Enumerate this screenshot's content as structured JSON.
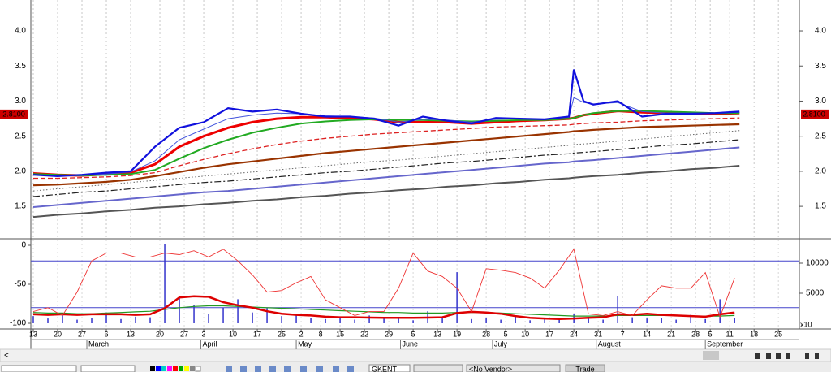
{
  "chart_data": [
    {
      "type": "line",
      "x": [
        0,
        5,
        10,
        15,
        20,
        25,
        30,
        35,
        40,
        45,
        50,
        55,
        60,
        65,
        70,
        75,
        80,
        85,
        90,
        95,
        100,
        105,
        110,
        111,
        113,
        115,
        120,
        125,
        130,
        135,
        140,
        145
      ],
      "xlim": [
        -0.5,
        157.3
      ],
      "xticks": [
        {
          "value": 0,
          "label": "13"
        },
        {
          "value": 5,
          "label": "20"
        },
        {
          "value": 10,
          "label": "27"
        },
        {
          "value": 15,
          "label": "6"
        },
        {
          "value": 20,
          "label": "13"
        },
        {
          "value": 26,
          "label": "20"
        },
        {
          "value": 31,
          "label": "27"
        },
        {
          "value": 35,
          "label": "3"
        },
        {
          "value": 41,
          "label": "10"
        },
        {
          "value": 46,
          "label": "17"
        },
        {
          "value": 51,
          "label": "25"
        },
        {
          "value": 55,
          "label": "2"
        },
        {
          "value": 59,
          "label": "8"
        },
        {
          "value": 63,
          "label": "15"
        },
        {
          "value": 68,
          "label": "22"
        },
        {
          "value": 73,
          "label": "29"
        },
        {
          "value": 78,
          "label": "5"
        },
        {
          "value": 83,
          "label": "13"
        },
        {
          "value": 87,
          "label": "19"
        },
        {
          "value": 93,
          "label": "28"
        },
        {
          "value": 97,
          "label": "5"
        },
        {
          "value": 101,
          "label": "10"
        },
        {
          "value": 106,
          "label": "17"
        },
        {
          "value": 111,
          "label": "24"
        },
        {
          "value": 116,
          "label": "31"
        },
        {
          "value": 121,
          "label": "7"
        },
        {
          "value": 126,
          "label": "14"
        },
        {
          "value": 131,
          "label": "21"
        },
        {
          "value": 136,
          "label": "28"
        },
        {
          "value": 139,
          "label": "5"
        },
        {
          "value": 143,
          "label": "11"
        },
        {
          "value": 148,
          "label": "18"
        },
        {
          "value": 153,
          "label": "25"
        }
      ],
      "month_labels": [
        {
          "value": 11,
          "label": "March"
        },
        {
          "value": 34.4,
          "label": "April"
        },
        {
          "value": 54,
          "label": "May"
        },
        {
          "value": 75.4,
          "label": "June"
        },
        {
          "value": 94.3,
          "label": "July"
        },
        {
          "value": 115.6,
          "label": "August"
        },
        {
          "value": 138,
          "label": "September"
        }
      ],
      "ylim": [
        1.05,
        4.44
      ],
      "yticks": [
        1.5,
        {
          "value": 2,
          "label": "2.0"
        },
        2.5,
        {
          "value": 3,
          "label": "3.0"
        },
        3.5,
        {
          "value": 4,
          "label": "4.0"
        }
      ],
      "grid": true,
      "last_price": {
        "value": 2.81,
        "label": "2.8100"
      },
      "series": [
        {
          "color": "#555555",
          "width": 2,
          "style": "solid",
          "values": [
            1.35,
            1.38,
            1.4,
            1.43,
            1.45,
            1.48,
            1.5,
            1.53,
            1.55,
            1.58,
            1.6,
            1.63,
            1.65,
            1.68,
            1.7,
            1.73,
            1.75,
            1.78,
            1.8,
            1.83,
            1.85,
            1.88,
            1.9,
            1.91,
            1.92,
            1.93,
            1.95,
            1.98,
            2.0,
            2.03,
            2.05,
            2.08
          ]
        },
        {
          "color": "#6666cc",
          "width": 2,
          "style": "solid",
          "values": [
            1.49,
            1.52,
            1.55,
            1.58,
            1.61,
            1.64,
            1.67,
            1.7,
            1.72,
            1.75,
            1.78,
            1.81,
            1.84,
            1.87,
            1.9,
            1.93,
            1.96,
            1.99,
            2.02,
            2.05,
            2.08,
            2.11,
            2.13,
            2.14,
            2.15,
            2.16,
            2.19,
            2.22,
            2.25,
            2.28,
            2.31,
            2.34
          ]
        },
        {
          "color": "#222222",
          "width": 1.2,
          "style": "dashdot",
          "values": [
            1.64,
            1.67,
            1.7,
            1.72,
            1.75,
            1.78,
            1.81,
            1.84,
            1.86,
            1.89,
            1.92,
            1.95,
            1.98,
            2.0,
            2.03,
            2.06,
            2.09,
            2.12,
            2.14,
            2.17,
            2.2,
            2.23,
            2.25,
            2.26,
            2.27,
            2.28,
            2.31,
            2.34,
            2.37,
            2.39,
            2.42,
            2.45
          ]
        },
        {
          "color": "#666666",
          "width": 1,
          "style": "dotted",
          "values": [
            1.72,
            1.75,
            1.78,
            1.81,
            1.84,
            1.87,
            1.9,
            1.93,
            1.96,
            1.99,
            2.02,
            2.05,
            2.08,
            2.11,
            2.14,
            2.16,
            2.19,
            2.22,
            2.25,
            2.28,
            2.31,
            2.34,
            2.37,
            2.38,
            2.39,
            2.4,
            2.43,
            2.46,
            2.49,
            2.52,
            2.55,
            2.58
          ]
        },
        {
          "color": "#993300",
          "width": 2.2,
          "style": "solid",
          "values": [
            1.8,
            1.81,
            1.83,
            1.85,
            1.88,
            1.93,
            1.99,
            2.05,
            2.1,
            2.14,
            2.18,
            2.22,
            2.26,
            2.29,
            2.32,
            2.35,
            2.38,
            2.41,
            2.44,
            2.47,
            2.5,
            2.53,
            2.56,
            2.57,
            2.58,
            2.59,
            2.61,
            2.63,
            2.64,
            2.65,
            2.66,
            2.67
          ]
        },
        {
          "color": "#dd2222",
          "width": 1.3,
          "style": "dashed",
          "values": [
            1.9,
            1.9,
            1.91,
            1.92,
            1.94,
            1.98,
            2.08,
            2.17,
            2.25,
            2.32,
            2.38,
            2.43,
            2.47,
            2.5,
            2.53,
            2.55,
            2.57,
            2.59,
            2.61,
            2.63,
            2.64,
            2.65,
            2.66,
            2.67,
            2.68,
            2.69,
            2.7,
            2.72,
            2.73,
            2.74,
            2.75,
            2.76
          ]
        },
        {
          "color": "#ee0000",
          "width": 3,
          "style": "solid",
          "values": [
            1.97,
            1.95,
            1.94,
            1.96,
            1.98,
            2.1,
            2.35,
            2.5,
            2.62,
            2.7,
            2.75,
            2.77,
            2.77,
            2.76,
            2.74,
            2.7,
            2.7,
            2.7,
            2.68,
            2.7,
            2.72,
            2.73,
            2.75,
            2.76,
            2.8,
            2.82,
            2.86,
            2.84,
            2.83,
            2.82,
            2.82,
            2.83
          ]
        },
        {
          "color": "#22aa22",
          "width": 2,
          "style": "solid",
          "values": [
            1.96,
            1.95,
            1.94,
            1.95,
            1.96,
            2.02,
            2.18,
            2.33,
            2.45,
            2.55,
            2.62,
            2.68,
            2.71,
            2.73,
            2.74,
            2.73,
            2.73,
            2.72,
            2.71,
            2.72,
            2.73,
            2.73,
            2.75,
            2.76,
            2.8,
            2.83,
            2.86,
            2.86,
            2.85,
            2.84,
            2.83,
            2.83
          ]
        },
        {
          "color": "#4455dd",
          "width": 1,
          "style": "solid",
          "values": [
            1.95,
            1.94,
            1.94,
            1.96,
            1.99,
            2.15,
            2.45,
            2.6,
            2.75,
            2.8,
            2.83,
            2.82,
            2.79,
            2.78,
            2.76,
            2.7,
            2.74,
            2.73,
            2.7,
            2.74,
            2.75,
            2.74,
            2.77,
            3.05,
            2.98,
            2.96,
            2.98,
            2.85,
            2.83,
            2.83,
            2.83,
            2.84
          ]
        },
        {
          "color": "#1111dd",
          "width": 2.2,
          "style": "solid",
          "values": [
            1.95,
            1.93,
            1.95,
            1.98,
            2.0,
            2.35,
            2.62,
            2.7,
            2.9,
            2.85,
            2.88,
            2.82,
            2.78,
            2.78,
            2.75,
            2.65,
            2.78,
            2.72,
            2.68,
            2.76,
            2.75,
            2.74,
            2.78,
            3.45,
            3.0,
            2.95,
            3.0,
            2.78,
            2.82,
            2.82,
            2.83,
            2.85
          ]
        }
      ]
    },
    {
      "type": "line",
      "x": [
        0,
        3,
        6,
        9,
        12,
        15,
        18,
        21,
        24,
        27,
        30,
        33,
        36,
        39,
        42,
        45,
        48,
        51,
        54,
        57,
        60,
        63,
        66,
        69,
        72,
        75,
        78,
        81,
        84,
        87,
        90,
        93,
        96,
        99,
        102,
        105,
        108,
        111,
        114,
        117,
        120,
        123,
        126,
        129,
        132,
        135,
        138,
        141,
        144
      ],
      "ylim": [
        -107.3,
        7.3
      ],
      "yticks": [
        0,
        -50,
        -100
      ],
      "y2lim": [
        -946,
        13919
      ],
      "y2ticks": [
        5000,
        10000
      ],
      "y2_label": "x10",
      "hlines": [
        -20,
        -80
      ],
      "hline_color": "#4444cc",
      "series": [
        {
          "type": "bar",
          "axis": "y2",
          "color": "#3333cc",
          "values": [
            1200,
            800,
            1500,
            600,
            900,
            1800,
            700,
            1100,
            1000,
            13200,
            4500,
            3000,
            1500,
            2600,
            4000,
            1800,
            2500,
            1200,
            1400,
            900,
            700,
            1000,
            600,
            1300,
            900,
            800,
            500,
            2000,
            1100,
            8500,
            700,
            900,
            600,
            1200,
            500,
            800,
            900,
            1500,
            1000,
            600,
            4500,
            1000,
            800,
            900,
            600,
            1400,
            700,
            4000,
            900
          ]
        },
        {
          "type": "line",
          "axis": "y2",
          "color": "#229922",
          "width": 1.2,
          "values": [
            1800,
            1700,
            1700,
            1600,
            1600,
            1700,
            1800,
            1900,
            2000,
            2300,
            2600,
            2800,
            2900,
            2900,
            2800,
            2700,
            2600,
            2500,
            2400,
            2300,
            2200,
            2100,
            2000,
            1900,
            1800,
            1800,
            1700,
            1700,
            1700,
            1800,
            1800,
            1800,
            1700,
            1600,
            1500,
            1400,
            1300,
            1200,
            1200,
            1200,
            1300,
            1300,
            1300,
            1300,
            1300,
            1200,
            1200,
            1200,
            1300
          ]
        },
        {
          "type": "line",
          "axis": "y2",
          "color": "#dd0000",
          "width": 2.5,
          "values": [
            1500,
            1400,
            1500,
            1400,
            1500,
            1500,
            1500,
            1400,
            1500,
            2500,
            4300,
            4500,
            4400,
            3500,
            3000,
            2600,
            2000,
            1600,
            1400,
            1300,
            1100,
            1000,
            1000,
            950,
            900,
            900,
            900,
            950,
            1000,
            1700,
            1900,
            1800,
            1600,
            1200,
            900,
            800,
            700,
            800,
            900,
            1000,
            1500,
            1400,
            1600,
            1400,
            1300,
            1200,
            1100,
            1500,
            1800
          ]
        },
        {
          "type": "line",
          "axis": "y",
          "color": "#ee3333",
          "width": 0.9,
          "values": [
            -85,
            -80,
            -90,
            -60,
            -20,
            -10,
            -10,
            -15,
            -15,
            -10,
            -12,
            -7,
            -15,
            -5,
            -20,
            -38,
            -60,
            -58,
            -48,
            -40,
            -70,
            -80,
            -90,
            -85,
            -85,
            -55,
            -10,
            -33,
            -40,
            -55,
            -85,
            -30,
            -32,
            -35,
            -42,
            -55,
            -32,
            -5,
            -88,
            -90,
            -85,
            -90,
            -70,
            -52,
            -55,
            -55,
            -35,
            -92,
            -42
          ]
        }
      ]
    }
  ],
  "toolbar": {
    "symbol": "GKENT",
    "vendor": "<No Vendor>",
    "button": "Trade"
  }
}
